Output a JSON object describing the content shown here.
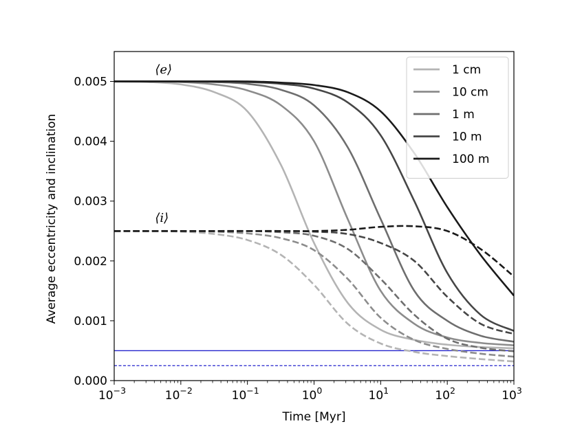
{
  "chart_data": {
    "type": "line",
    "xscale": "log",
    "x": [
      0.001,
      0.0032,
      0.01,
      0.032,
      0.1,
      0.32,
      1,
      3.2,
      10,
      32,
      100,
      316,
      1000
    ],
    "xlim": [
      0.001,
      1000
    ],
    "ylim": [
      0.0,
      0.0055
    ],
    "xlabel": "Time [Myr]",
    "ylabel": "Average eccentricity and inclination",
    "x_ticks": [
      {
        "value": 0.001,
        "base": "10",
        "exp": "−3"
      },
      {
        "value": 0.01,
        "base": "10",
        "exp": "−2"
      },
      {
        "value": 0.1,
        "base": "10",
        "exp": "−1"
      },
      {
        "value": 1,
        "base": "10",
        "exp": "0"
      },
      {
        "value": 10,
        "base": "10",
        "exp": "1"
      },
      {
        "value": 100,
        "base": "10",
        "exp": "2"
      },
      {
        "value": 1000,
        "base": "10",
        "exp": "3"
      }
    ],
    "y_ticks": [
      {
        "value": 0.0,
        "label": "0.000"
      },
      {
        "value": 0.001,
        "label": "0.001"
      },
      {
        "value": 0.002,
        "label": "0.002"
      },
      {
        "value": 0.003,
        "label": "0.003"
      },
      {
        "value": 0.004,
        "label": "0.004"
      },
      {
        "value": 0.005,
        "label": "0.005"
      }
    ],
    "series": [
      {
        "name": "1 cm",
        "kind": "eccentricity",
        "style": "solid",
        "color": "#b4b4b4",
        "values": [
          0.005,
          0.00499,
          0.00495,
          0.00482,
          0.0045,
          0.0036,
          0.0023,
          0.0013,
          0.00085,
          0.00068,
          0.0006,
          0.00056,
          0.00054
        ]
      },
      {
        "name": "10 cm",
        "kind": "eccentricity",
        "style": "solid",
        "color": "#8c8c8c",
        "values": [
          0.005,
          0.005,
          0.00499,
          0.00495,
          0.00485,
          0.0046,
          0.004,
          0.0027,
          0.0015,
          0.00095,
          0.00072,
          0.00063,
          0.00059
        ]
      },
      {
        "name": "1 m",
        "kind": "eccentricity",
        "style": "solid",
        "color": "#6e6e6e",
        "values": [
          0.005,
          0.005,
          0.005,
          0.00499,
          0.00496,
          0.00486,
          0.0046,
          0.0039,
          0.0027,
          0.0015,
          0.001,
          0.00075,
          0.00065
        ]
      },
      {
        "name": "10 m",
        "kind": "eccentricity",
        "style": "solid",
        "color": "#464646",
        "values": [
          0.005,
          0.005,
          0.005,
          0.005,
          0.00499,
          0.00496,
          0.00488,
          0.00465,
          0.0041,
          0.003,
          0.0018,
          0.0011,
          0.00083
        ]
      },
      {
        "name": "100 m",
        "kind": "eccentricity",
        "style": "solid",
        "color": "#1a1a1a",
        "values": [
          0.005,
          0.005,
          0.005,
          0.005,
          0.005,
          0.00498,
          0.00494,
          0.00482,
          0.0045,
          0.0038,
          0.0029,
          0.0021,
          0.00142
        ]
      },
      {
        "name": "1 cm",
        "kind": "inclination",
        "style": "dashed",
        "color": "#b4b4b4",
        "values": [
          0.0025,
          0.0025,
          0.00249,
          0.00245,
          0.00235,
          0.0021,
          0.0016,
          0.00095,
          0.00062,
          0.00048,
          0.00041,
          0.00036,
          0.00032
        ]
      },
      {
        "name": "10 cm",
        "kind": "inclination",
        "style": "dashed",
        "color": "#8c8c8c",
        "values": [
          0.0025,
          0.0025,
          0.0025,
          0.00249,
          0.00246,
          0.00238,
          0.00218,
          0.0017,
          0.00105,
          0.00068,
          0.00053,
          0.00045,
          0.0004
        ]
      },
      {
        "name": "1 m",
        "kind": "inclination",
        "style": "dashed",
        "color": "#6e6e6e",
        "values": [
          0.0025,
          0.0025,
          0.0025,
          0.0025,
          0.0025,
          0.00248,
          0.00242,
          0.0022,
          0.0017,
          0.0011,
          0.0007,
          0.00055,
          0.00049
        ]
      },
      {
        "name": "10 m",
        "kind": "inclination",
        "style": "dashed",
        "color": "#464646",
        "values": [
          0.0025,
          0.0025,
          0.0025,
          0.0025,
          0.0025,
          0.0025,
          0.00249,
          0.00245,
          0.0023,
          0.002,
          0.0014,
          0.00095,
          0.00078
        ]
      },
      {
        "name": "100 m",
        "kind": "inclination",
        "style": "dashed",
        "color": "#1a1a1a",
        "values": [
          0.0025,
          0.0025,
          0.0025,
          0.0025,
          0.0025,
          0.0025,
          0.0025,
          0.00252,
          0.00257,
          0.00258,
          0.0025,
          0.0022,
          0.00174
        ]
      }
    ],
    "reference_lines": [
      {
        "y": 0.0005,
        "style": "solid",
        "color": "#2222cc"
      },
      {
        "y": 0.00025,
        "style": "dashed",
        "color": "#2222cc"
      }
    ],
    "legend": {
      "placement": "top-right",
      "entries": [
        {
          "label": "1 cm",
          "color": "#b4b4b4"
        },
        {
          "label": "10 cm",
          "color": "#8c8c8c"
        },
        {
          "label": "1 m",
          "color": "#6e6e6e"
        },
        {
          "label": "10 m",
          "color": "#464646"
        },
        {
          "label": "100 m",
          "color": "#1a1a1a"
        }
      ]
    },
    "annotations": [
      {
        "text": "⟨e⟩",
        "x": 0.006,
        "y": 0.0052
      },
      {
        "text": "⟨i⟩",
        "x": 0.006,
        "y": 0.00272
      }
    ]
  }
}
